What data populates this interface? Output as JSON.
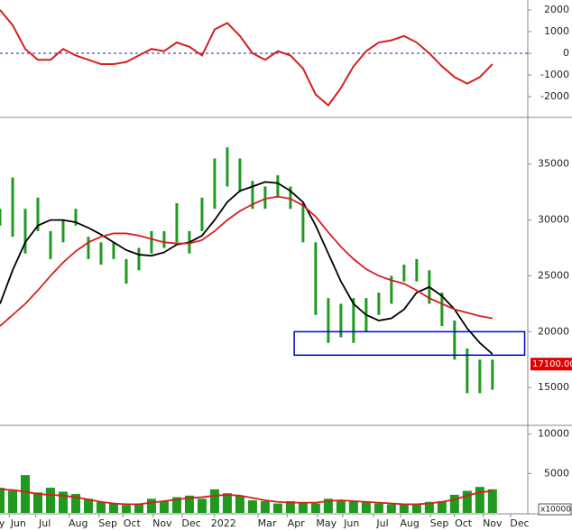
{
  "chart_data": [
    {
      "type": "line",
      "x": [
        0,
        2,
        4,
        6,
        8,
        10,
        12,
        14,
        16,
        18,
        20,
        22,
        24,
        26,
        28,
        30,
        32,
        34,
        36,
        38,
        40,
        42,
        44,
        46,
        48,
        50,
        52,
        54,
        56,
        58,
        60,
        62,
        64,
        66,
        68,
        70,
        72,
        74,
        76,
        78
      ],
      "values": [
        2000,
        1300,
        200,
        -300,
        -300,
        200,
        -100,
        -300,
        -500,
        -500,
        -400,
        -100,
        200,
        100,
        500,
        300,
        -100,
        1100,
        1400,
        800,
        0,
        -300,
        100,
        -100,
        -700,
        -1900,
        -2400,
        -1600,
        -600,
        100,
        500,
        600,
        800,
        500,
        0,
        -600,
        -1100,
        -1400,
        -1100,
        -500
      ],
      "color": "#d81e1e",
      "xlim": [
        0,
        83.6
      ],
      "ylim": [
        -2875,
        2460
      ],
      "yticks": [
        2000,
        1000,
        0,
        -1000,
        -2000
      ],
      "zero_line": true
    },
    {
      "type": "range_bar",
      "x": [
        0,
        2,
        4,
        6,
        8,
        10,
        12,
        14,
        16,
        18,
        20,
        22,
        24,
        26,
        28,
        30,
        32,
        34,
        36,
        38,
        40,
        42,
        44,
        46,
        48,
        50,
        52,
        54,
        56,
        58,
        60,
        62,
        64,
        66,
        68,
        70,
        72,
        74,
        76,
        78
      ],
      "high": [
        31000,
        33800,
        31000,
        32000,
        29000,
        30000,
        31000,
        28500,
        28000,
        28000,
        26500,
        27500,
        29000,
        29000,
        31500,
        29000,
        32000,
        35500,
        36500,
        35500,
        33500,
        33000,
        34000,
        33000,
        31500,
        28000,
        23000,
        22500,
        23000,
        23000,
        23500,
        25000,
        26000,
        26500,
        25500,
        23500,
        21000,
        18500,
        17500,
        17500
      ],
      "low": [
        29500,
        28500,
        27000,
        29000,
        26500,
        28000,
        29500,
        26500,
        26000,
        26500,
        24300,
        25500,
        27000,
        27500,
        28000,
        27000,
        29000,
        31000,
        33000,
        32500,
        31000,
        31000,
        32000,
        31000,
        28000,
        21500,
        19000,
        19500,
        19000,
        20000,
        21500,
        22500,
        24500,
        24500,
        22500,
        20500,
        17500,
        14500,
        14500,
        14800
      ],
      "color": "#1f9a1f",
      "series": [
        {
          "color": "#000000",
          "values": [
            22500,
            25500,
            28000,
            29500,
            30000,
            30000,
            29800,
            29300,
            28700,
            28000,
            27300,
            26900,
            26800,
            27100,
            27800,
            28000,
            28600,
            30000,
            31600,
            32600,
            33000,
            33400,
            33300,
            32600,
            31600,
            29500,
            27000,
            24500,
            22500,
            21500,
            21000,
            21200,
            22000,
            23500,
            24000,
            23200,
            22000,
            20300,
            19000,
            18000
          ]
        },
        {
          "color": "#d81e1e",
          "values": [
            20500,
            21500,
            22500,
            23700,
            25000,
            26200,
            27200,
            28000,
            28500,
            28800,
            28800,
            28600,
            28300,
            28000,
            27900,
            27900,
            28200,
            29000,
            30000,
            30800,
            31400,
            31900,
            32100,
            31900,
            31300,
            30300,
            28900,
            27600,
            26500,
            25600,
            25000,
            24600,
            24300,
            23700,
            23000,
            22500,
            22000,
            21700,
            21400,
            21200
          ]
        }
      ],
      "zone": {
        "x": [
          46.6,
          83.1
        ],
        "y": [
          17900,
          20000
        ],
        "color": "#0000dd"
      },
      "last_label": {
        "value": 17100,
        "label": "17100.00"
      },
      "xlim": [
        0,
        83.6
      ],
      "ylim": [
        11700,
        39100
      ],
      "yticks": [
        35000,
        30000,
        25000,
        20000,
        15000
      ]
    },
    {
      "type": "bar",
      "x": [
        0,
        2,
        4,
        6,
        8,
        10,
        12,
        14,
        16,
        18,
        20,
        22,
        24,
        26,
        28,
        30,
        32,
        34,
        36,
        38,
        40,
        42,
        44,
        46,
        48,
        50,
        52,
        54,
        56,
        58,
        60,
        62,
        64,
        66,
        68,
        70,
        72,
        74,
        76,
        78
      ],
      "values": [
        3200,
        2800,
        4800,
        2600,
        3200,
        2700,
        2400,
        1800,
        1400,
        1200,
        1000,
        1100,
        1800,
        1500,
        2000,
        2200,
        1800,
        3000,
        2500,
        2200,
        1600,
        1500,
        1200,
        1500,
        1300,
        1200,
        1800,
        1600,
        1500,
        1400,
        1200,
        1100,
        1100,
        1200,
        1400,
        1500,
        2300,
        2800,
        3300,
        3000
      ],
      "color": "#1f9a1f",
      "series": [
        {
          "color": "#d81e1e",
          "values": [
            3000,
            2900,
            2700,
            2400,
            2300,
            2200,
            2000,
            1700,
            1400,
            1200,
            1100,
            1100,
            1300,
            1500,
            1700,
            1900,
            2000,
            2200,
            2300,
            2200,
            1900,
            1600,
            1400,
            1300,
            1300,
            1300,
            1500,
            1600,
            1500,
            1400,
            1300,
            1200,
            1100,
            1100,
            1200,
            1400,
            1700,
            2200,
            2600,
            2800
          ]
        }
      ],
      "unit_label": "x10000",
      "xlim": [
        0,
        83.6
      ],
      "ylim": [
        0,
        11000
      ],
      "yticks": [
        10000,
        5000
      ],
      "xticks": [
        {
          "value": 0.3,
          "label": "y"
        },
        {
          "value": 2.9,
          "label": "Jun"
        },
        {
          "value": 7.1,
          "label": "Jul"
        },
        {
          "value": 12.4,
          "label": "Aug"
        },
        {
          "value": 17.1,
          "label": "Sep"
        },
        {
          "value": 20.9,
          "label": "Oct"
        },
        {
          "value": 25.7,
          "label": "Nov"
        },
        {
          "value": 30.3,
          "label": "Dec"
        },
        {
          "value": 35.4,
          "label": "2022"
        },
        {
          "value": 42.3,
          "label": "Mar"
        },
        {
          "value": 46.9,
          "label": "Apr"
        },
        {
          "value": 51.7,
          "label": "May"
        },
        {
          "value": 55.7,
          "label": "Jun"
        },
        {
          "value": 60.6,
          "label": "Jul"
        },
        {
          "value": 64.9,
          "label": "Aug"
        },
        {
          "value": 69.6,
          "label": "Sep"
        },
        {
          "value": 73.4,
          "label": "Oct"
        },
        {
          "value": 78,
          "label": "Nov"
        },
        {
          "value": 82.3,
          "label": "Dec"
        }
      ]
    }
  ]
}
